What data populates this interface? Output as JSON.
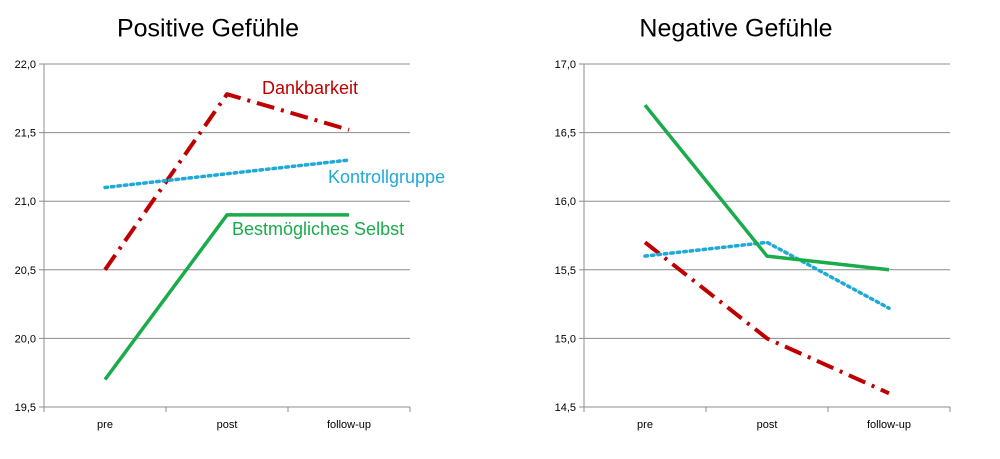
{
  "chart_data": [
    {
      "type": "line",
      "title": "Positive Gefühle",
      "categories": [
        "pre",
        "post",
        "follow-up"
      ],
      "ylim": [
        19.5,
        22.0
      ],
      "yticks": [
        "19,5",
        "20,0",
        "20,5",
        "21,0",
        "21,5",
        "22,0"
      ],
      "ytick_values": [
        19.5,
        20.0,
        20.5,
        21.0,
        21.5,
        22.0
      ],
      "grid": true,
      "series": [
        {
          "name": "Dankbarkeit",
          "values": [
            20.5,
            21.78,
            21.52
          ],
          "color": "#c00000",
          "style": "dashdot"
        },
        {
          "name": "Kontrollgruppe",
          "values": [
            21.1,
            21.2,
            21.3
          ],
          "color": "#1fa9d6",
          "style": "dotted"
        },
        {
          "name": "Bestmögliches Selbst",
          "values": [
            19.7,
            20.9,
            20.9
          ],
          "color": "#1aab4a",
          "style": "solid"
        }
      ]
    },
    {
      "type": "line",
      "title": "Negative Gefühle",
      "categories": [
        "pre",
        "post",
        "follow-up"
      ],
      "ylim": [
        14.5,
        17.0
      ],
      "yticks": [
        "14,5",
        "15,0",
        "15,5",
        "16,0",
        "16,5",
        "17,0"
      ],
      "ytick_values": [
        14.5,
        15.0,
        15.5,
        16.0,
        16.5,
        17.0
      ],
      "grid": true,
      "series": [
        {
          "name": "Dankbarkeit",
          "values": [
            15.7,
            15.0,
            14.6
          ],
          "color": "#c00000",
          "style": "dashdot"
        },
        {
          "name": "Kontrollgruppe",
          "values": [
            15.6,
            15.7,
            15.22
          ],
          "color": "#1fa9d6",
          "style": "dotted"
        },
        {
          "name": "Bestmögliches Selbst",
          "values": [
            16.7,
            15.6,
            15.5
          ],
          "color": "#1aab4a",
          "style": "solid"
        }
      ]
    }
  ]
}
